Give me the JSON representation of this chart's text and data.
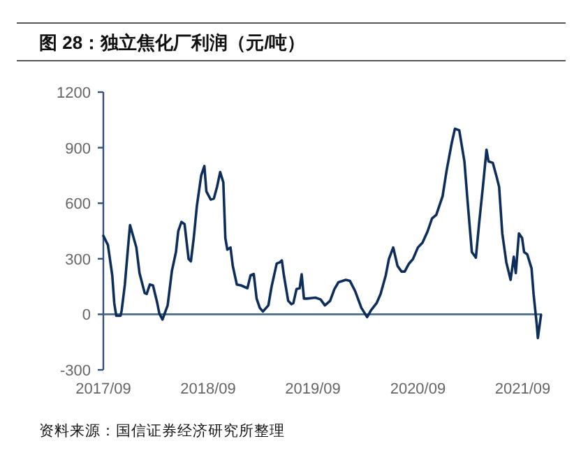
{
  "chart_data": {
    "type": "line",
    "title": "图 28：独立焦化厂利润（元/吨）",
    "annotations": [
      "资料来源：国信证券经济研究所整理"
    ],
    "xlim": [
      "2017-09-01",
      "2021-11-07"
    ],
    "xticks": [
      {
        "value": "2017-09-01",
        "label": "2017/09"
      },
      {
        "value": "2018-09-01",
        "label": "2018/09"
      },
      {
        "value": "2019-09-01",
        "label": "2019/09"
      },
      {
        "value": "2020-09-01",
        "label": "2020/09"
      },
      {
        "value": "2021-09-01",
        "label": "2021/09"
      }
    ],
    "ylim": [
      -300,
      1200
    ],
    "yticks": [
      -300,
      0,
      300,
      600,
      900,
      1200
    ],
    "grid": false,
    "marker": "none",
    "line_style": "solid",
    "ref_lines": [
      {
        "axis": "y",
        "value": 0,
        "color": "#4a6a8a"
      }
    ],
    "series": [
      {
        "color": "#0d2d5a",
        "x": [
          "2017-09-01",
          "2017-09-17",
          "2017-10-02",
          "2017-10-09",
          "2017-10-16",
          "2017-10-31",
          "2017-11-04",
          "2017-11-15",
          "2017-11-26",
          "2017-12-03",
          "2017-12-25",
          "2018-01-05",
          "2018-01-23",
          "2018-01-30",
          "2018-02-10",
          "2018-02-21",
          "2018-03-08",
          "2018-03-15",
          "2018-03-26",
          "2018-04-13",
          "2018-04-28",
          "2018-05-12",
          "2018-05-20",
          "2018-05-31",
          "2018-06-11",
          "2018-06-25",
          "2018-07-03",
          "2018-07-13",
          "2018-07-24",
          "2018-08-08",
          "2018-08-19",
          "2018-08-26",
          "2018-09-10",
          "2018-09-21",
          "2018-10-02",
          "2018-10-13",
          "2018-10-24",
          "2018-10-31",
          "2018-11-07",
          "2018-11-18",
          "2018-11-26",
          "2018-12-10",
          "2018-12-25",
          "2019-01-16",
          "2019-01-27",
          "2019-02-07",
          "2019-02-17",
          "2019-02-28",
          "2019-03-11",
          "2019-03-30",
          "2019-04-10",
          "2019-04-28",
          "2019-05-09",
          "2019-05-16",
          "2019-05-23",
          "2019-06-07",
          "2019-06-18",
          "2019-06-25",
          "2019-07-06",
          "2019-07-17",
          "2019-07-24",
          "2019-08-01",
          "2019-08-12",
          "2019-09-10",
          "2019-09-28",
          "2019-10-13",
          "2019-10-31",
          "2019-11-15",
          "2019-11-29",
          "2019-12-25",
          "2020-01-08",
          "2020-01-27",
          "2020-02-17",
          "2020-03-08",
          "2020-03-22",
          "2020-04-10",
          "2020-04-24",
          "2020-05-12",
          "2020-05-23",
          "2020-06-07",
          "2020-06-22",
          "2020-07-06",
          "2020-07-17",
          "2020-08-01",
          "2020-08-15",
          "2020-09-01",
          "2020-09-17",
          "2020-10-05",
          "2020-10-20",
          "2020-11-04",
          "2020-11-26",
          "2020-12-10",
          "2020-12-28",
          "2021-01-08",
          "2021-01-23",
          "2021-02-10",
          "2021-02-21",
          "2021-03-08",
          "2021-03-22",
          "2021-04-02",
          "2021-04-17",
          "2021-04-28",
          "2021-05-05",
          "2021-05-20",
          "2021-06-03",
          "2021-06-11",
          "2021-06-22",
          "2021-07-06",
          "2021-07-21",
          "2021-08-01",
          "2021-08-08",
          "2021-08-19",
          "2021-08-30",
          "2021-09-06",
          "2021-09-17",
          "2021-10-02",
          "2021-10-09",
          "2021-10-20",
          "2021-10-24",
          "2021-11-04"
        ],
        "values": [
          424,
          374,
          211,
          60,
          -8,
          -8,
          23,
          161,
          361,
          482,
          361,
          223,
          115,
          110,
          161,
          156,
          60,
          5,
          -28,
          48,
          236,
          336,
          449,
          499,
          487,
          299,
          286,
          412,
          587,
          750,
          801,
          663,
          620,
          625,
          688,
          768,
          713,
          412,
          349,
          361,
          261,
          161,
          156,
          141,
          211,
          218,
          85,
          35,
          15,
          48,
          148,
          274,
          281,
          291,
          211,
          73,
          55,
          60,
          136,
          141,
          216,
          85,
          85,
          90,
          80,
          48,
          73,
          136,
          173,
          186,
          181,
          123,
          35,
          -15,
          23,
          60,
          110,
          211,
          299,
          361,
          261,
          231,
          231,
          274,
          299,
          361,
          387,
          449,
          517,
          537,
          638,
          776,
          926,
          1002,
          994,
          826,
          612,
          336,
          306,
          487,
          713,
          889,
          826,
          818,
          738,
          688,
          437,
          281,
          186,
          311,
          223,
          437,
          412,
          336,
          324,
          248,
          110,
          -53,
          -128,
          -3
        ]
      }
    ]
  }
}
